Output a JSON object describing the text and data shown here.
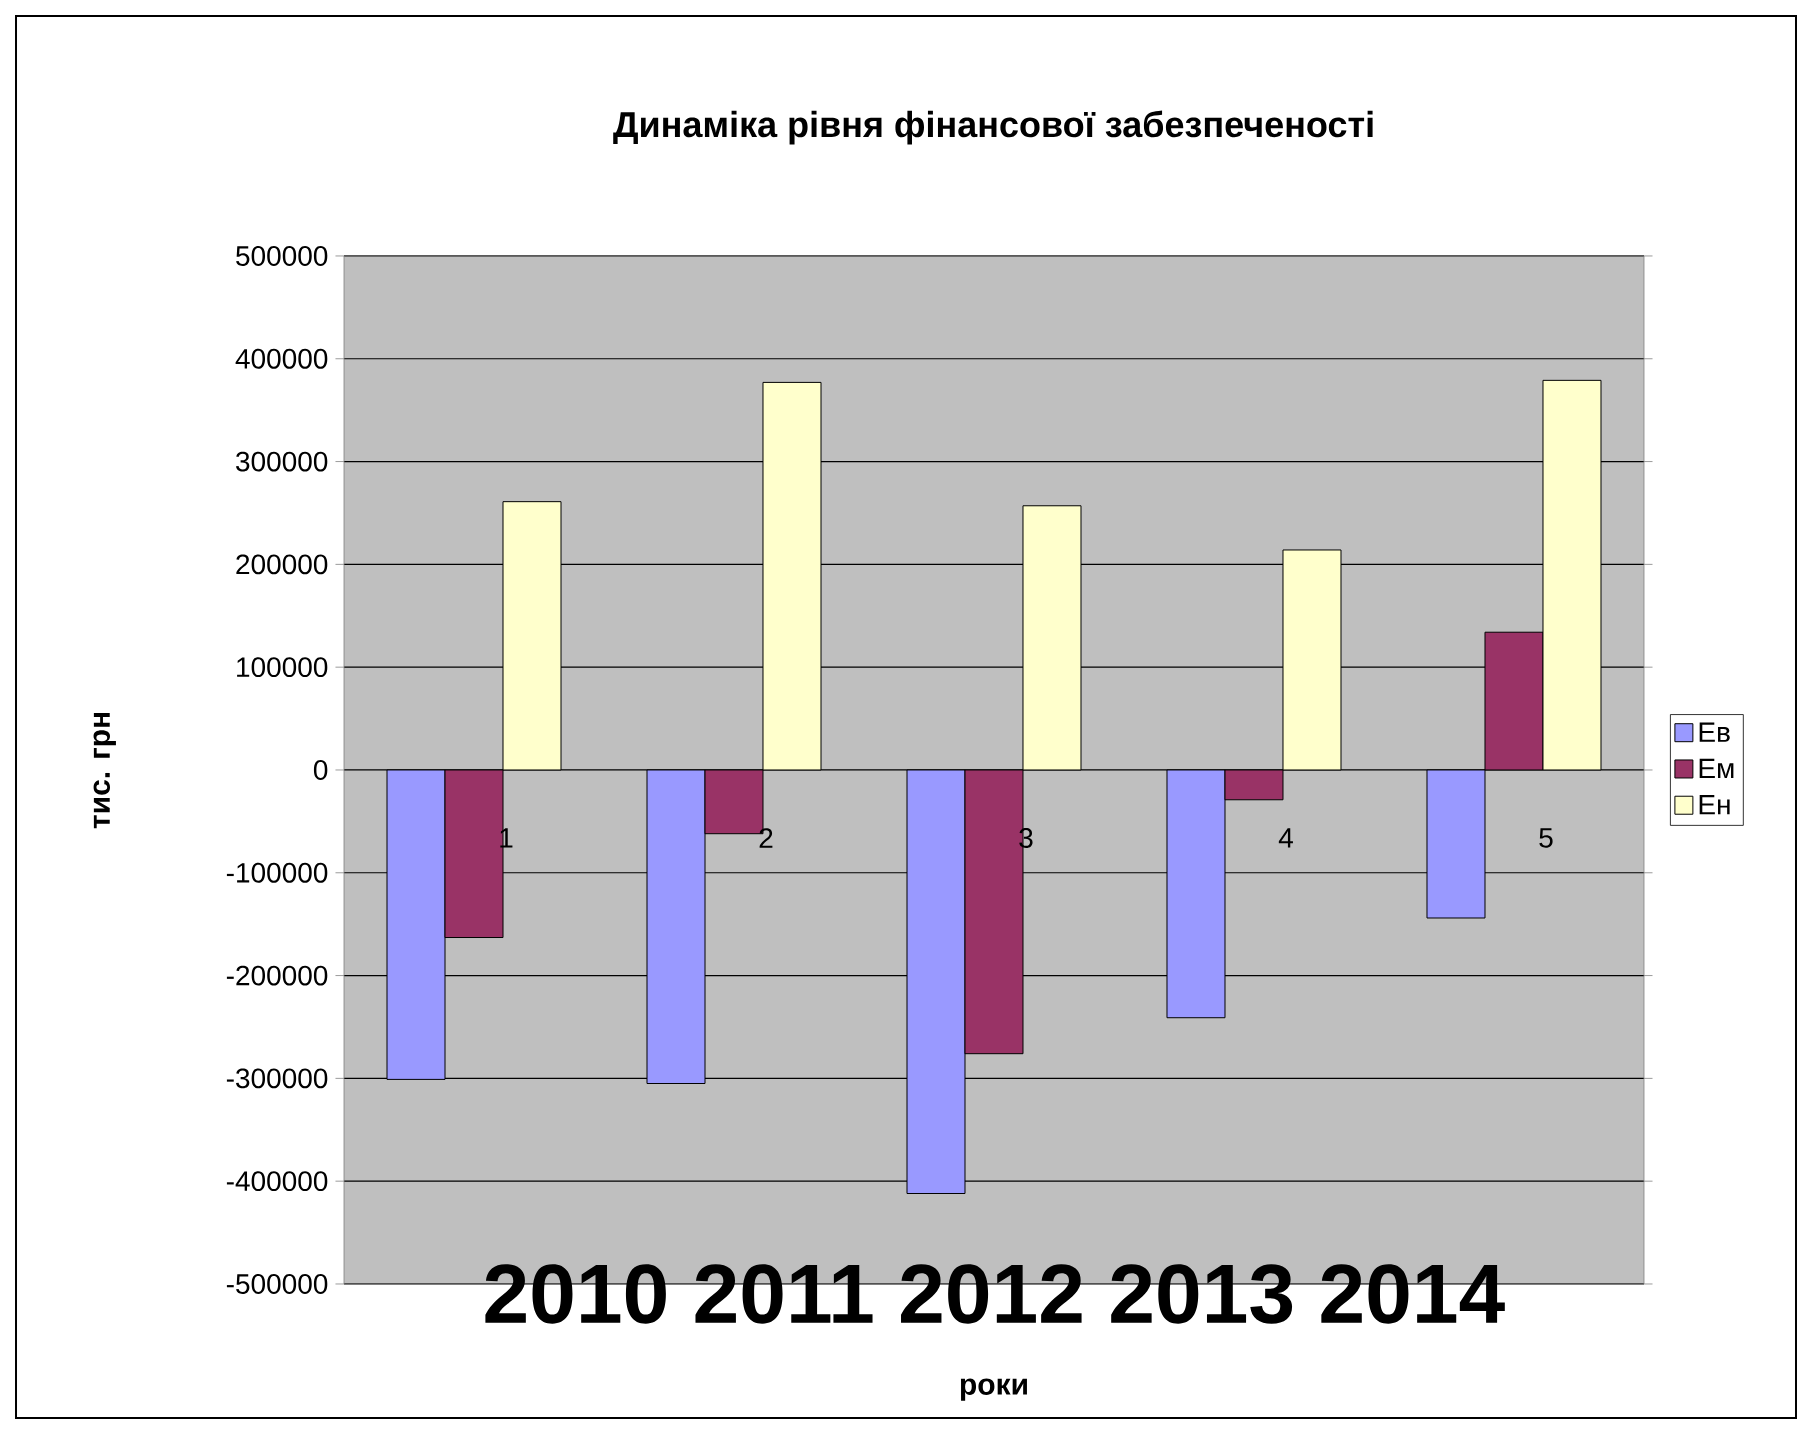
{
  "chart_data": {
    "type": "bar",
    "title": "Динаміка рівня фінансової забезпеченості",
    "xlabel": "роки",
    "ylabel": "тис. грн",
    "categories": [
      "1",
      "2",
      "3",
      "4",
      "5"
    ],
    "series": [
      {
        "name": "Ев",
        "color": "#9999ff",
        "values": [
          -301000,
          -305000,
          -412000,
          -241000,
          -144000
        ]
      },
      {
        "name": "Ем",
        "color": "#993366",
        "values": [
          -163000,
          -62000,
          -276000,
          -29000,
          134000
        ]
      },
      {
        "name": "Ен",
        "color": "#ffffcc",
        "values": [
          261000,
          377000,
          257000,
          214000,
          379000
        ]
      }
    ],
    "ylim": [
      -500000,
      500000
    ],
    "yticks": [
      -500000,
      -400000,
      -300000,
      -200000,
      -100000,
      0,
      100000,
      200000,
      300000,
      400000,
      500000
    ],
    "grid": "y",
    "legend": "right",
    "annotations": [
      "2010 2011 2012 2013 2014"
    ]
  }
}
